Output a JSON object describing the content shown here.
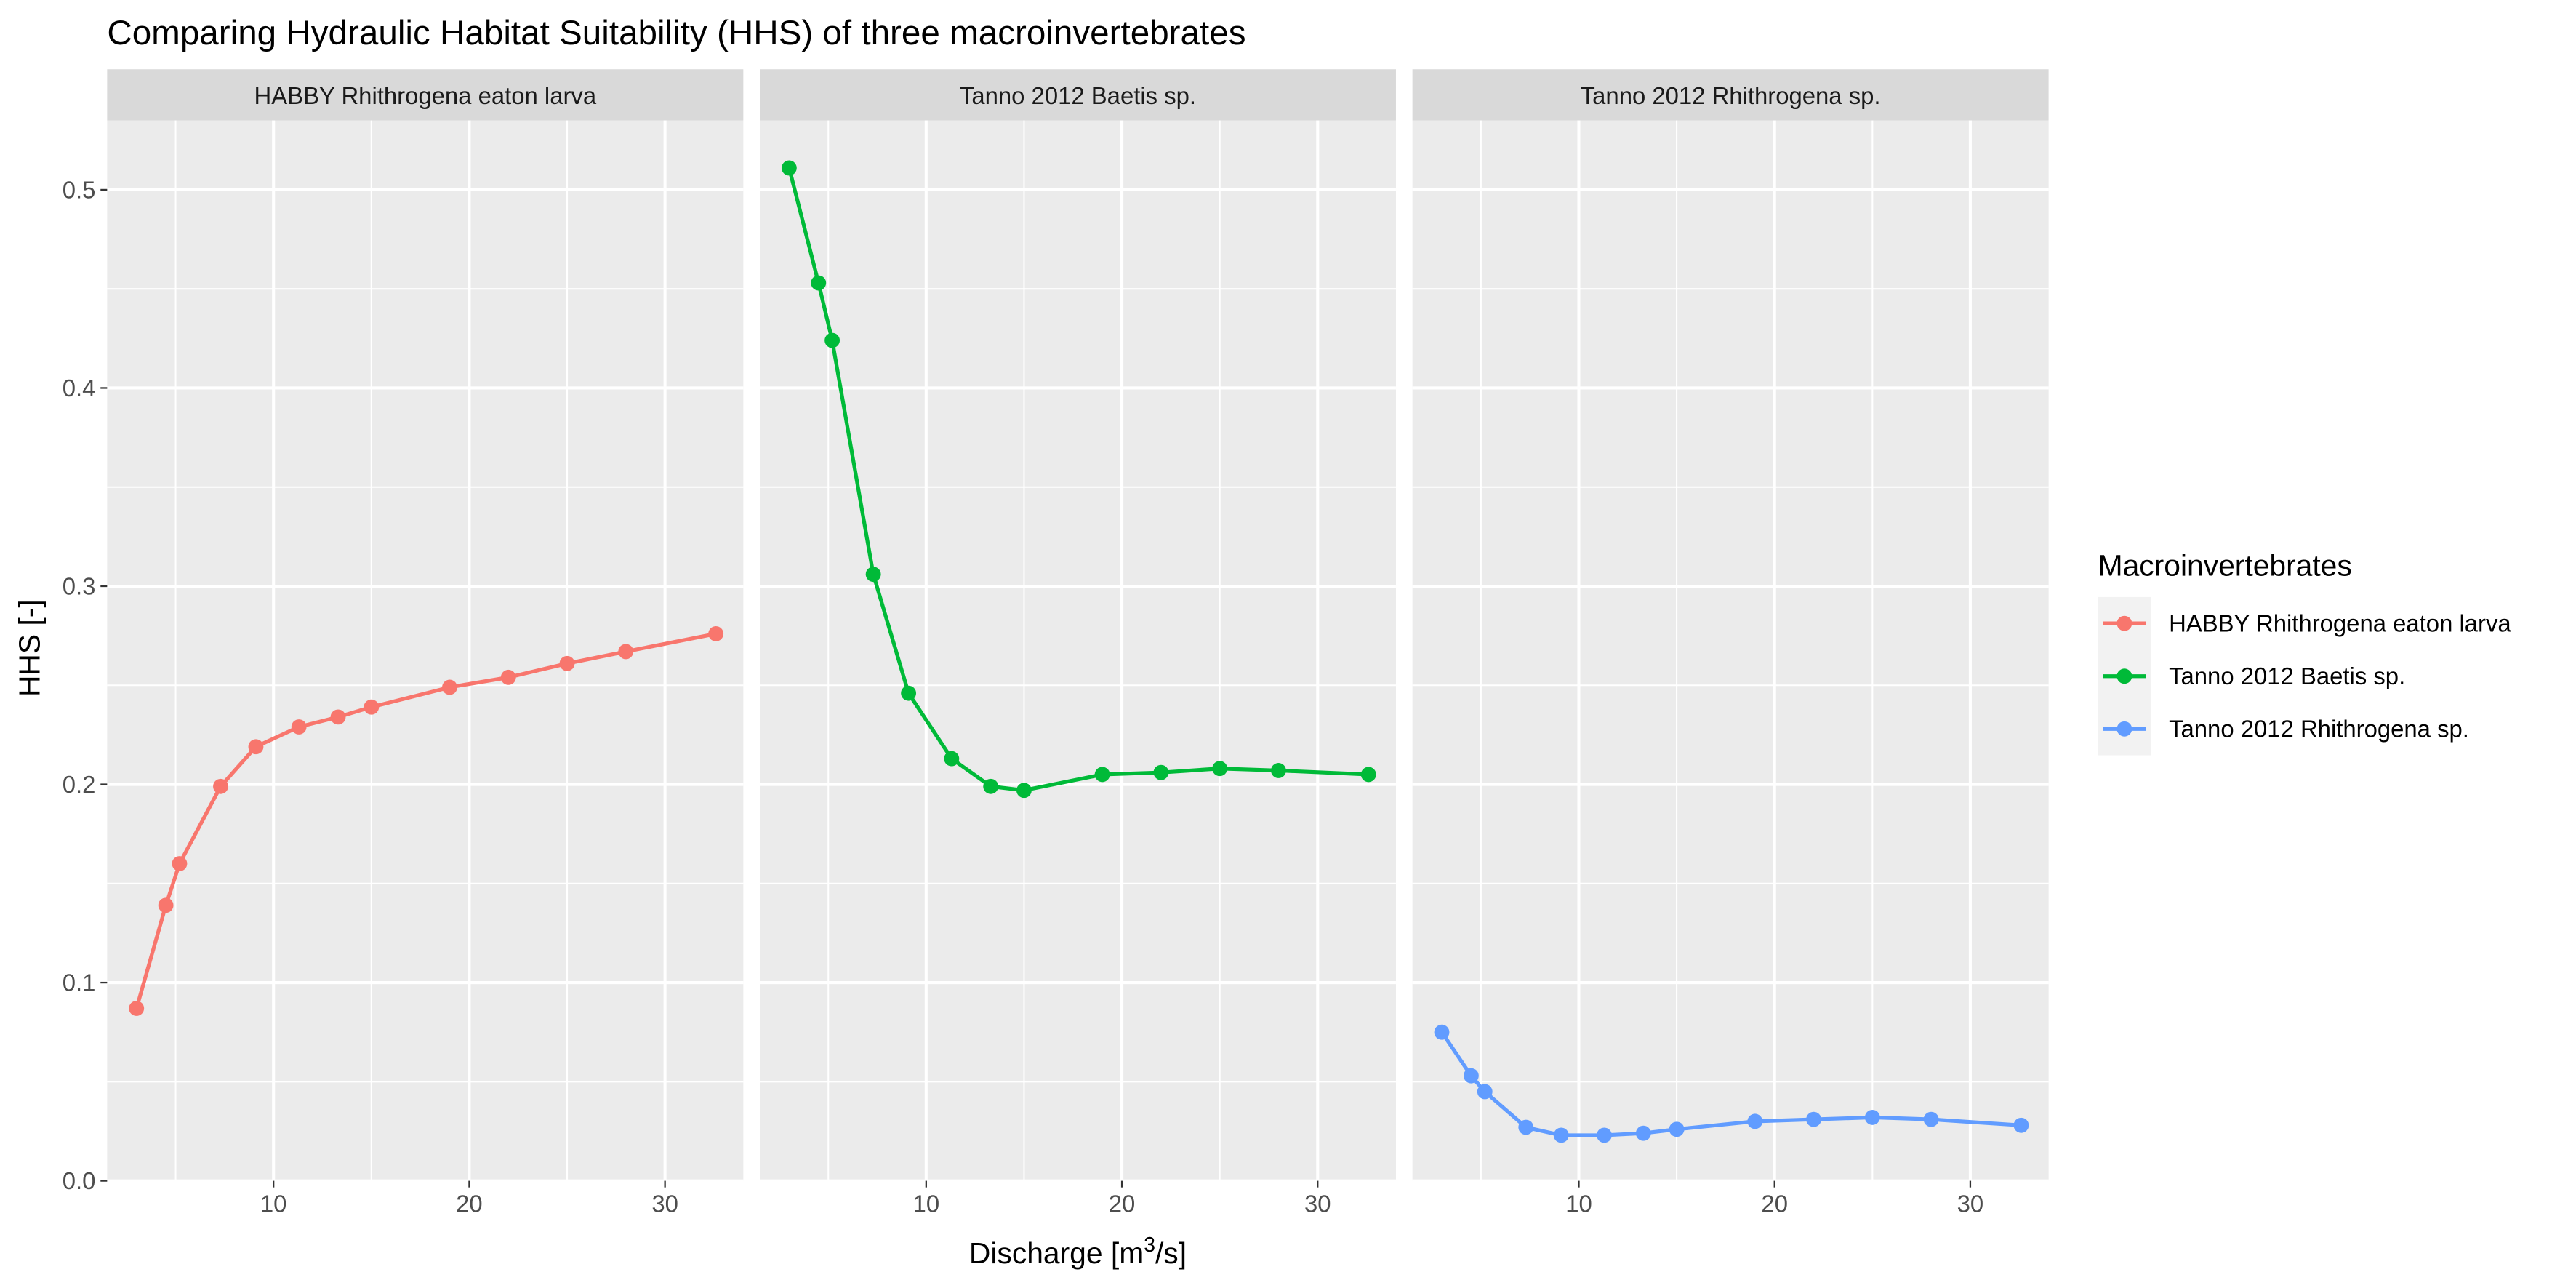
{
  "chart_data": {
    "type": "line",
    "title": "Comparing Hydraulic Habitat Suitability (HHS) of three macroinvertebrates",
    "xlabel": "Discharge [m3/s]",
    "xlabel_parts": {
      "before": "Discharge [m",
      "superscript": "3",
      "after": "/s]"
    },
    "ylabel": "HHS [-]",
    "xlim": [
      1.5,
      34.0
    ],
    "ylim": [
      0.0,
      0.535
    ],
    "x_ticks": [
      10,
      20,
      30
    ],
    "x_tick_labels": [
      "10",
      "20",
      "30"
    ],
    "y_ticks": [
      0.0,
      0.1,
      0.2,
      0.3,
      0.4,
      0.5
    ],
    "y_tick_labels": [
      "0.0",
      "0.1",
      "0.2",
      "0.3",
      "0.4",
      "0.5"
    ],
    "grid": true,
    "facets": [
      "HABBY Rhithrogena eaton larva",
      "Tanno 2012 Baetis sp.",
      "Tanno 2012 Rhithrogena sp."
    ],
    "legend": {
      "title": "Macroinvertebrates",
      "position": "right",
      "entries": [
        "HABBY Rhithrogena eaton larva",
        "Tanno 2012 Baetis sp.",
        "Tanno 2012 Rhithrogena sp."
      ]
    },
    "series": [
      {
        "name": "HABBY Rhithrogena eaton larva",
        "color": "#F8766D",
        "x": [
          3,
          4.5,
          5.2,
          7.3,
          9.1,
          11.3,
          13.3,
          15,
          19,
          22,
          25,
          28,
          32.6
        ],
        "y": [
          0.087,
          0.139,
          0.16,
          0.199,
          0.219,
          0.229,
          0.234,
          0.239,
          0.249,
          0.254,
          0.261,
          0.267,
          0.276
        ]
      },
      {
        "name": "Tanno 2012 Baetis sp.",
        "color": "#00BA38",
        "x": [
          3,
          4.5,
          5.2,
          7.3,
          9.1,
          11.3,
          13.3,
          15,
          19,
          22,
          25,
          28,
          32.6
        ],
        "y": [
          0.511,
          0.453,
          0.424,
          0.306,
          0.246,
          0.213,
          0.199,
          0.197,
          0.205,
          0.206,
          0.208,
          0.207,
          0.205
        ]
      },
      {
        "name": "Tanno 2012 Rhithrogena sp.",
        "color": "#619CFF",
        "x": [
          3,
          4.5,
          5.2,
          7.3,
          9.1,
          11.3,
          13.3,
          15,
          19,
          22,
          25,
          28,
          32.6
        ],
        "y": [
          0.075,
          0.053,
          0.045,
          0.027,
          0.023,
          0.023,
          0.024,
          0.026,
          0.03,
          0.031,
          0.032,
          0.031,
          0.028
        ]
      }
    ]
  }
}
